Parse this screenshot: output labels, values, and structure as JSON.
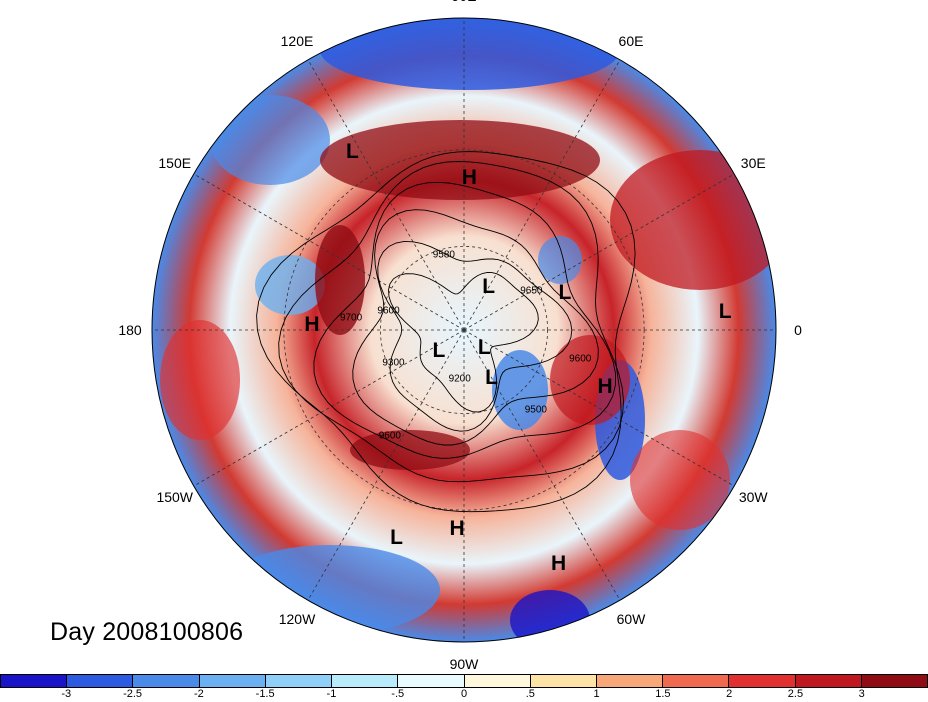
{
  "title": "Day 2008100806",
  "longitude_labels": [
    "90E",
    "60E",
    "30E",
    "0",
    "30W",
    "60W",
    "90W",
    "120W",
    "150W",
    "180",
    "150E",
    "120E"
  ],
  "pressure_systems": [
    {
      "label": "L",
      "lon": 122,
      "lat": 22
    },
    {
      "label": "H",
      "lon": 88,
      "lat": 38
    },
    {
      "label": "H",
      "lon": 178,
      "lat": 38
    },
    {
      "label": "L",
      "lon": 20,
      "lat": 52
    },
    {
      "label": "L",
      "lon": 60,
      "lat": 72
    },
    {
      "label": "L",
      "lon": 4,
      "lat": 10
    },
    {
      "label": "L",
      "lon": -42,
      "lat": 80
    },
    {
      "label": "L",
      "lon": -140,
      "lat": 78
    },
    {
      "label": "L",
      "lon": -60,
      "lat": 70
    },
    {
      "label": "H",
      "lon": -22,
      "lat": 38
    },
    {
      "label": "L",
      "lon": -108,
      "lat": 20
    },
    {
      "label": "H",
      "lon": -92,
      "lat": 25
    },
    {
      "label": "H",
      "lon": -68,
      "lat": 12
    }
  ],
  "contour_labels": [
    {
      "text": "9700",
      "lon": 174,
      "lat": 50
    },
    {
      "text": "9300",
      "lon": -155,
      "lat": 62
    },
    {
      "text": "9600",
      "lon": -125,
      "lat": 45
    },
    {
      "text": "9500",
      "lon": -48,
      "lat": 52
    },
    {
      "text": "9600",
      "lon": -14,
      "lat": 48
    },
    {
      "text": "9200",
      "lon": -95,
      "lat": 72
    },
    {
      "text": "9600",
      "lon": 166,
      "lat": 62
    },
    {
      "text": "9580",
      "lon": 105,
      "lat": 62
    },
    {
      "text": "9650",
      "lon": 30,
      "lat": 62
    }
  ],
  "colorbar": {
    "ticks": [
      "-3",
      "-2.5",
      "-2",
      "-1.5",
      "-1",
      "-.5",
      "0",
      ".5",
      "1",
      "1.5",
      "2",
      "2.5",
      "3"
    ],
    "colors": [
      "#1a14c8",
      "#2d5be0",
      "#4a8ae8",
      "#6bb0f0",
      "#8fd0f8",
      "#b8ecfc",
      "#e8fbff",
      "#fff8dc",
      "#fde3a6",
      "#f8a878",
      "#f06a50",
      "#e03030",
      "#c01820",
      "#900c14"
    ]
  }
}
